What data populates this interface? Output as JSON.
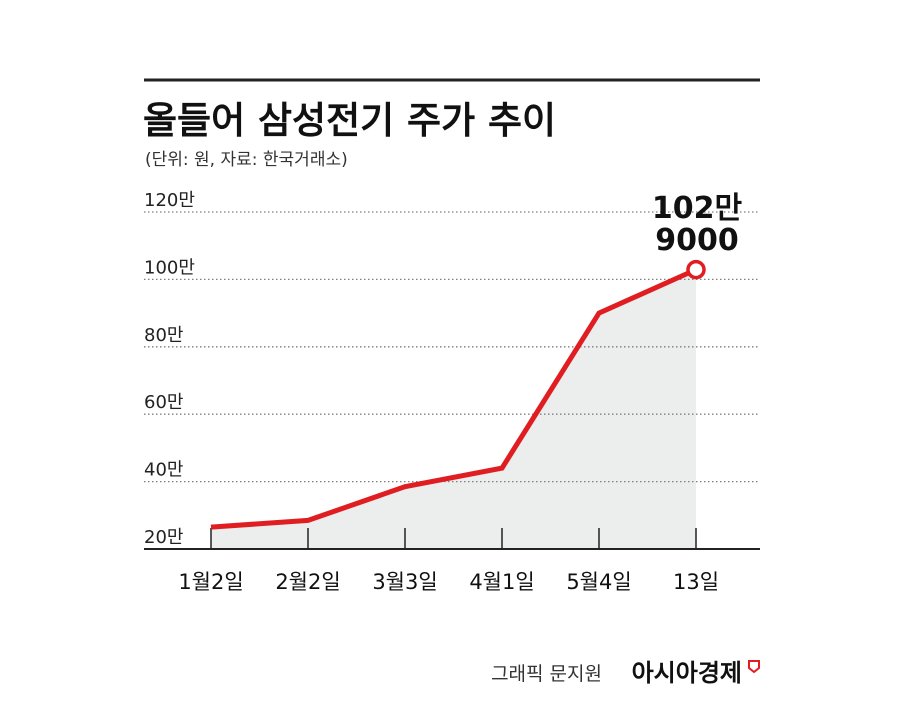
{
  "header": {
    "title": "올들어 삼성전기 주가 추이",
    "subtitle": "(단위: 원, 자료: 한국거래소)"
  },
  "chart_data": {
    "type": "area",
    "categories": [
      "1월2일",
      "2월2일",
      "3월3일",
      "4월1일",
      "5월4일",
      "13일"
    ],
    "values": [
      265000,
      285000,
      385000,
      440000,
      900000,
      1029000
    ],
    "y_ticks": [
      "120만",
      "100만",
      "80만",
      "60만",
      "40만",
      "20만"
    ],
    "ylim": [
      200000,
      1200000
    ],
    "grid": true,
    "annotation": {
      "line1": "102만",
      "line2": "9000"
    },
    "colors": {
      "line": "#e01e22",
      "area": "#eceded",
      "grid": "#7f7f7f",
      "axis": "#222222"
    }
  },
  "footer": {
    "credit": "그래픽 문지원",
    "brand": "아시아경제"
  }
}
